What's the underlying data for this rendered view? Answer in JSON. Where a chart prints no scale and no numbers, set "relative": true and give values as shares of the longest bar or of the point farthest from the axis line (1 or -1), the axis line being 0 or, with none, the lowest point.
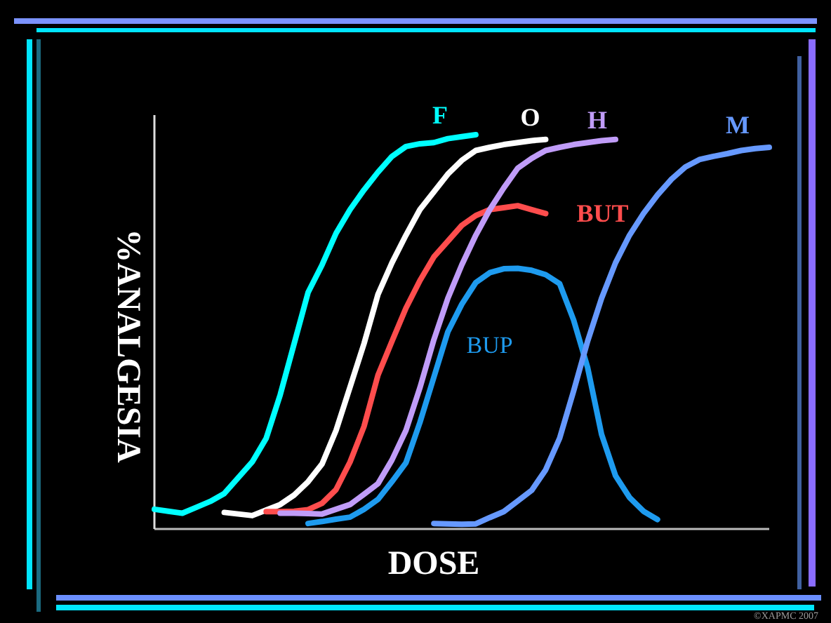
{
  "chart_data": {
    "type": "line",
    "relative": true,
    "xlabel": "DOSE",
    "ylabel": "%ANALGESIA",
    "line_style": "solid",
    "annotations": [
      "©XAPMC 2007"
    ],
    "categories": [
      null,
      null,
      null,
      null,
      null,
      null,
      null,
      null,
      null,
      null,
      null,
      null,
      null,
      null,
      null,
      null,
      null,
      null,
      null,
      null,
      null,
      null,
      null,
      null,
      null,
      null,
      null,
      null,
      null,
      null,
      null,
      null,
      null,
      null,
      null,
      null,
      null,
      null,
      null,
      null,
      null,
      null,
      null,
      null,
      null
    ],
    "series": [
      {
        "name": "F",
        "color": "#00ffff",
        "values": [
          0.05,
          0.045,
          0.04,
          0.055,
          0.07,
          0.09,
          0.13,
          0.17,
          0.23,
          0.34,
          0.47,
          0.6,
          0.67,
          0.75,
          0.81,
          0.86,
          0.905,
          0.945,
          0.97,
          0.977,
          0.98,
          0.99,
          0.995,
          1,
          null,
          null,
          null,
          null,
          null,
          null,
          null,
          null,
          null,
          null,
          null,
          null,
          null,
          null,
          null,
          null,
          null,
          null,
          null,
          null,
          null
        ]
      },
      {
        "name": "O",
        "color": "#ffffff",
        "values": [
          null,
          null,
          null,
          null,
          null,
          0.042,
          0.038,
          0.034,
          0.048,
          0.062,
          0.086,
          0.12,
          0.165,
          0.25,
          0.36,
          0.47,
          0.595,
          0.675,
          0.745,
          0.81,
          0.855,
          0.9,
          0.935,
          0.96,
          0.968,
          0.975,
          0.98,
          0.985,
          0.988,
          null,
          null,
          null,
          null,
          null,
          null,
          null,
          null,
          null,
          null,
          null,
          null,
          null,
          null,
          null,
          null
        ]
      },
      {
        "name": "BUT",
        "color": "#ff4d4d",
        "values": [
          null,
          null,
          null,
          null,
          null,
          null,
          null,
          null,
          0.044,
          0.044,
          0.045,
          0.049,
          0.065,
          0.1,
          0.17,
          0.26,
          0.39,
          0.476,
          0.56,
          0.63,
          0.69,
          0.73,
          0.77,
          0.795,
          0.81,
          0.815,
          0.82,
          0.81,
          0.8,
          null,
          null,
          null,
          null,
          null,
          null,
          null,
          null,
          null,
          null,
          null,
          null,
          null,
          null,
          null,
          null
        ]
      },
      {
        "name": "H",
        "color": "#c09cf8",
        "values": [
          null,
          null,
          null,
          null,
          null,
          null,
          null,
          null,
          null,
          0.04,
          0.04,
          0.039,
          0.038,
          0.05,
          0.062,
          0.088,
          0.115,
          0.175,
          0.25,
          0.358,
          0.48,
          0.585,
          0.67,
          0.745,
          0.81,
          0.865,
          0.915,
          0.94,
          0.96,
          0.968,
          0.975,
          0.98,
          0.985,
          0.988,
          null,
          null,
          null,
          null,
          null,
          null,
          null,
          null,
          null,
          null,
          null
        ]
      },
      {
        "name": "BUP",
        "color": "#1e9bef",
        "values": [
          null,
          null,
          null,
          null,
          null,
          null,
          null,
          null,
          null,
          null,
          null,
          0.014,
          0.019,
          0.025,
          0.03,
          0.05,
          0.075,
          0.12,
          0.168,
          0.27,
          0.385,
          0.5,
          0.57,
          0.625,
          0.65,
          0.66,
          0.661,
          0.656,
          0.645,
          0.622,
          0.53,
          0.41,
          0.24,
          0.135,
          0.08,
          0.045,
          0.024,
          null,
          null,
          null,
          null,
          null,
          null,
          null,
          null
        ]
      },
      {
        "name": "M",
        "color": "#6699ff",
        "values": [
          null,
          null,
          null,
          null,
          null,
          null,
          null,
          null,
          null,
          null,
          null,
          null,
          null,
          null,
          null,
          null,
          null,
          null,
          null,
          null,
          0.014,
          0.013,
          0.012,
          0.013,
          0.029,
          0.044,
          0.071,
          0.098,
          0.15,
          0.23,
          0.35,
          0.476,
          0.585,
          0.675,
          0.745,
          0.8,
          0.847,
          0.887,
          0.918,
          0.937,
          0.945,
          0.952,
          0.96,
          0.965,
          0.968
        ]
      }
    ]
  }
}
